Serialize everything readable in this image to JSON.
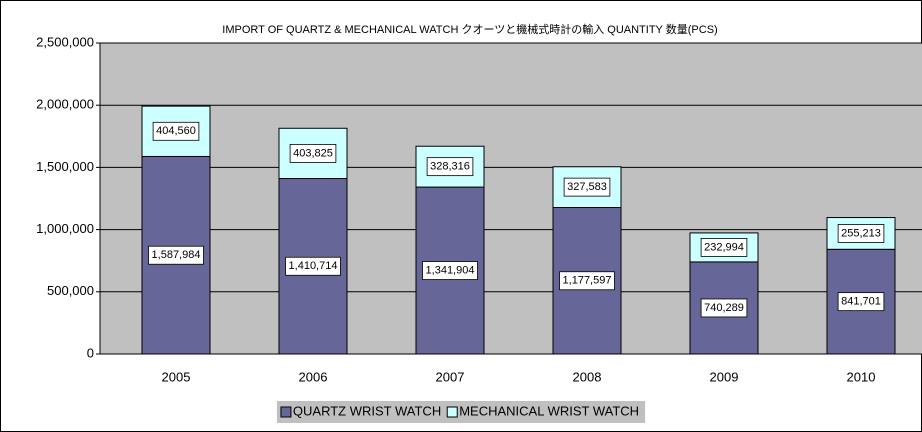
{
  "chart_data": {
    "type": "stacked-bar",
    "title": "IMPORT OF QUARTZ & MECHANICAL WATCH クオーツと機械式時計の輸入 QUANTITY 数量(PCS)",
    "categories": [
      "2005",
      "2006",
      "2007",
      "2008",
      "2009",
      "2010"
    ],
    "series": [
      {
        "name": "QUARTZ WRIST WATCH",
        "color": "#666699",
        "values": [
          1587984,
          1410714,
          1341904,
          1177597,
          740289,
          841701
        ],
        "value_labels": [
          "1,587,984",
          "1,410,714",
          "1,341,904",
          "1,177,597",
          "740,289",
          "841,701"
        ]
      },
      {
        "name": "MECHANICAL WRIST WATCH",
        "color": "#ccffff",
        "values": [
          404560,
          403825,
          328316,
          327583,
          232994,
          255213
        ],
        "value_labels": [
          "404,560",
          "403,825",
          "328,316",
          "327,583",
          "232,994",
          "255,213"
        ]
      }
    ],
    "ylim": [
      0,
      2500000
    ],
    "yticks": [
      0,
      {
        "value": 500000,
        "label": "500,000"
      },
      {
        "value": 1000000,
        "label": "1,000,000"
      },
      {
        "value": 1500000,
        "label": "1,500,000"
      },
      {
        "value": 2000000,
        "label": "2,000,000"
      },
      {
        "value": 2500000,
        "label": "2,500,000"
      }
    ],
    "grid": true,
    "legend": "bottom"
  }
}
